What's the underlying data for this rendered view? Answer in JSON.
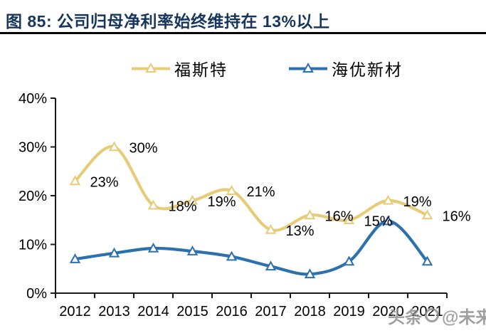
{
  "figure": {
    "title": "图 85:  公司归母净利率始终维持在 13%以上",
    "watermark": {
      "text_left": "头条",
      "logo": "circle-logo-icon",
      "text_right": "@未来智库"
    }
  },
  "colors": {
    "title": "#17365D",
    "rule": "#000000",
    "axis": "#1A1A1A",
    "tick_label": "#000000",
    "data_label": "#000000",
    "watermark": "#8C8C8C",
    "background": "#FFFFFF",
    "series_foster": "#E7CC78",
    "series_haiyou": "#2C70AE"
  },
  "chart_data": {
    "type": "line",
    "smooth": true,
    "marker": "open-triangle",
    "grid": false,
    "legend_position": "top",
    "categories": [
      "2012",
      "2013",
      "2014",
      "2015",
      "2016",
      "2017",
      "2018",
      "2019",
      "2020",
      "2021"
    ],
    "xlabel": "",
    "ylabel": "",
    "ylim": [
      0,
      40
    ],
    "ytick_labels": [
      "0%",
      "10%",
      "20%",
      "30%",
      "40%"
    ],
    "series": [
      {
        "name": "福斯特",
        "color": "#E7CC78",
        "values": [
          23,
          30,
          18,
          19,
          21,
          13,
          16,
          15,
          19,
          16
        ],
        "point_labels": [
          "23%",
          "30%",
          "18%",
          "19%",
          "21%",
          "13%",
          "16%",
          "15%",
          "19%",
          "16%"
        ]
      },
      {
        "name": "海优新材",
        "color": "#2C70AE",
        "values": [
          7.0,
          8.2,
          9.2,
          8.6,
          7.5,
          5.5,
          3.9,
          6.5,
          14.8,
          6.5
        ],
        "point_labels": []
      }
    ]
  }
}
